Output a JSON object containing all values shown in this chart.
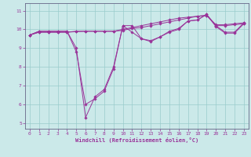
{
  "xlabel": "Windchill (Refroidissement éolien,°C)",
  "bg_color": "#cbe9e9",
  "line_color": "#993399",
  "grid_color": "#99cccc",
  "xlim": [
    -0.5,
    23.5
  ],
  "ylim": [
    4.7,
    11.4
  ],
  "xticks": [
    0,
    1,
    2,
    3,
    4,
    5,
    6,
    7,
    8,
    9,
    10,
    11,
    12,
    13,
    14,
    15,
    16,
    17,
    18,
    19,
    20,
    21,
    22,
    23
  ],
  "yticks": [
    5,
    6,
    7,
    8,
    9,
    10,
    11
  ],
  "lines": [
    {
      "x": [
        0,
        1,
        2,
        3,
        4,
        5,
        6,
        7,
        8,
        9,
        10,
        11,
        12,
        13,
        14,
        15,
        16,
        17,
        18,
        19,
        20,
        21,
        22,
        23
      ],
      "y": [
        9.7,
        9.9,
        9.9,
        9.9,
        9.9,
        8.8,
        6.0,
        6.3,
        6.7,
        7.9,
        10.2,
        10.2,
        9.5,
        9.4,
        9.6,
        9.9,
        10.05,
        10.45,
        10.5,
        10.8,
        10.2,
        9.85,
        9.85,
        10.35
      ]
    },
    {
      "x": [
        0,
        1,
        2,
        3,
        4,
        5,
        6,
        7,
        8,
        9,
        10,
        11,
        12,
        13,
        14,
        15,
        16,
        17,
        18,
        19,
        20,
        21,
        22,
        23
      ],
      "y": [
        9.7,
        9.9,
        9.9,
        9.9,
        9.9,
        9.0,
        5.3,
        6.4,
        6.8,
        8.0,
        10.2,
        9.85,
        9.5,
        9.35,
        9.6,
        9.85,
        10.0,
        10.45,
        10.5,
        10.8,
        10.15,
        9.8,
        9.8,
        10.3
      ]
    },
    {
      "x": [
        0,
        1,
        2,
        3,
        4,
        5,
        6,
        7,
        8,
        9,
        10,
        11,
        12,
        13,
        14,
        15,
        16,
        17,
        18,
        19,
        20,
        21,
        22,
        23
      ],
      "y": [
        9.7,
        9.85,
        9.85,
        9.85,
        9.85,
        9.9,
        9.9,
        9.9,
        9.9,
        9.9,
        10.0,
        10.1,
        10.2,
        10.3,
        10.4,
        10.5,
        10.6,
        10.65,
        10.7,
        10.75,
        10.25,
        10.25,
        10.3,
        10.35
      ]
    },
    {
      "x": [
        0,
        1,
        2,
        3,
        4,
        5,
        6,
        7,
        8,
        9,
        10,
        11,
        12,
        13,
        14,
        15,
        16,
        17,
        18,
        19,
        20,
        21,
        22,
        23
      ],
      "y": [
        9.7,
        9.85,
        9.85,
        9.85,
        9.85,
        9.88,
        9.9,
        9.9,
        9.9,
        9.9,
        9.95,
        10.05,
        10.1,
        10.2,
        10.3,
        10.4,
        10.5,
        10.6,
        10.7,
        10.75,
        10.2,
        10.2,
        10.25,
        10.3
      ]
    }
  ]
}
